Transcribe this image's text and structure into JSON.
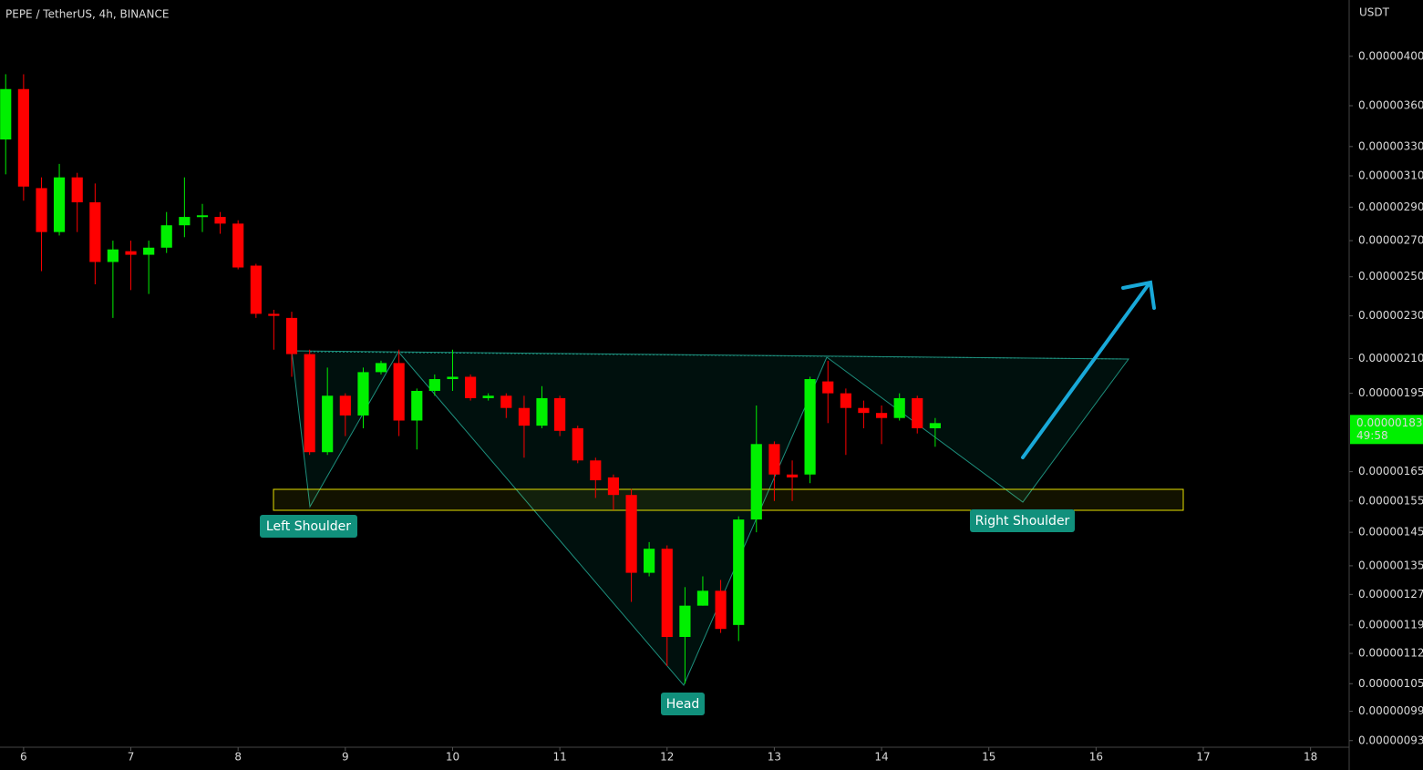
{
  "chart_data": {
    "type": "candlestick",
    "title": "PEPE / TetherUS, 4h, BINANCE",
    "y_axis_label": "USDT",
    "log_scale": true,
    "grid": false,
    "up_color": "#00f000",
    "down_color": "#ff0000",
    "x": [
      5.833,
      6,
      6.167,
      6.333,
      6.5,
      6.667,
      6.833,
      7,
      7.167,
      7.333,
      7.5,
      7.667,
      7.833,
      8,
      8.167,
      8.333,
      8.5,
      8.667,
      8.833,
      9,
      9.167,
      9.333,
      9.5,
      9.667,
      9.833,
      10,
      10.167,
      10.333,
      10.5,
      10.667,
      10.833,
      11,
      11.167,
      11.333,
      11.5,
      11.667,
      11.833,
      12,
      12.167,
      12.333,
      12.5,
      12.667,
      12.833,
      13,
      13.167,
      13.333,
      13.5,
      13.667,
      13.833,
      14,
      14.167,
      14.333,
      14.5
    ],
    "open": [
      3.35e-06,
      3.73e-06,
      3.02e-06,
      2.75e-06,
      3.09e-06,
      2.93e-06,
      2.58e-06,
      2.64e-06,
      2.62e-06,
      2.66e-06,
      2.79e-06,
      2.84e-06,
      2.84e-06,
      2.8e-06,
      2.56e-06,
      2.31e-06,
      2.29e-06,
      2.12e-06,
      1.72e-06,
      1.94e-06,
      1.86e-06,
      2.04e-06,
      2.08e-06,
      1.84e-06,
      1.96e-06,
      2.01e-06,
      2.02e-06,
      1.93e-06,
      1.94e-06,
      1.89e-06,
      1.82e-06,
      1.93e-06,
      1.81e-06,
      1.69e-06,
      1.63e-06,
      1.57e-06,
      1.33e-06,
      1.4e-06,
      1.16e-06,
      1.24e-06,
      1.28e-06,
      1.19e-06,
      1.49e-06,
      1.75e-06,
      1.64e-06,
      1.64e-06,
      2e-06,
      1.95e-06,
      1.89e-06,
      1.87e-06,
      1.85e-06,
      1.93e-06,
      1.81e-06
    ],
    "high": [
      3.85e-06,
      3.85e-06,
      3.09e-06,
      3.18e-06,
      3.12e-06,
      3.05e-06,
      2.7e-06,
      2.7e-06,
      2.7e-06,
      2.87e-06,
      3.09e-06,
      2.92e-06,
      2.87e-06,
      2.82e-06,
      2.57e-06,
      2.33e-06,
      2.32e-06,
      2.14e-06,
      2.06e-06,
      1.95e-06,
      2.06e-06,
      2.09e-06,
      2.14e-06,
      1.97e-06,
      2.03e-06,
      2.14e-06,
      2.03e-06,
      1.95e-06,
      1.95e-06,
      1.94e-06,
      1.98e-06,
      1.94e-06,
      1.82e-06,
      1.7e-06,
      1.64e-06,
      1.59e-06,
      1.42e-06,
      1.41e-06,
      1.29e-06,
      1.32e-06,
      1.31e-06,
      1.5e-06,
      1.9e-06,
      1.76e-06,
      1.69e-06,
      2.02e-06,
      2.09e-06,
      1.97e-06,
      1.92e-06,
      1.9e-06,
      1.95e-06,
      1.94e-06,
      1.85e-06
    ],
    "low": [
      3.11e-06,
      2.94e-06,
      2.53e-06,
      2.73e-06,
      2.75e-06,
      2.46e-06,
      2.29e-06,
      2.43e-06,
      2.41e-06,
      2.63e-06,
      2.72e-06,
      2.75e-06,
      2.74e-06,
      2.54e-06,
      2.29e-06,
      2.14e-06,
      2.02e-06,
      1.71e-06,
      1.71e-06,
      1.78e-06,
      1.81e-06,
      2.03e-06,
      1.78e-06,
      1.73e-06,
      1.94e-06,
      1.96e-06,
      1.92e-06,
      1.92e-06,
      1.85e-06,
      1.7e-06,
      1.81e-06,
      1.78e-06,
      1.68e-06,
      1.56e-06,
      1.52e-06,
      1.25e-06,
      1.32e-06,
      1.09e-06,
      1.05e-06,
      1.24e-06,
      1.17e-06,
      1.15e-06,
      1.45e-06,
      1.55e-06,
      1.55e-06,
      1.61e-06,
      1.83e-06,
      1.71e-06,
      1.81e-06,
      1.75e-06,
      1.84e-06,
      1.79e-06,
      1.74e-06
    ],
    "close": [
      3.73e-06,
      3.03e-06,
      2.75e-06,
      3.09e-06,
      2.93e-06,
      2.58e-06,
      2.65e-06,
      2.62e-06,
      2.66e-06,
      2.79e-06,
      2.84e-06,
      2.85e-06,
      2.8e-06,
      2.55e-06,
      2.31e-06,
      2.3e-06,
      2.12e-06,
      1.72e-06,
      1.94e-06,
      1.86e-06,
      2.04e-06,
      2.08e-06,
      1.84e-06,
      1.96e-06,
      2.01e-06,
      2.02e-06,
      1.93e-06,
      1.94e-06,
      1.89e-06,
      1.82e-06,
      1.93e-06,
      1.8e-06,
      1.69e-06,
      1.62e-06,
      1.57e-06,
      1.33e-06,
      1.4e-06,
      1.16e-06,
      1.24e-06,
      1.28e-06,
      1.18e-06,
      1.49e-06,
      1.75e-06,
      1.64e-06,
      1.63e-06,
      2.01e-06,
      1.95e-06,
      1.89e-06,
      1.87e-06,
      1.85e-06,
      1.93e-06,
      1.81e-06,
      1.83e-06
    ],
    "xlim": [
      5.78,
      18.36
    ],
    "xticks": [
      6,
      7,
      8,
      9,
      10,
      11,
      12,
      13,
      14,
      15,
      16,
      17,
      18
    ],
    "ylim": [
      4.51e-06,
      9.17e-07
    ],
    "yticks": [
      {
        "value": 4e-06,
        "label": "0.00000400"
      },
      {
        "value": 3.6e-06,
        "label": "0.00000360"
      },
      {
        "value": 3.3e-06,
        "label": "0.00000330"
      },
      {
        "value": 3.1e-06,
        "label": "0.00000310"
      },
      {
        "value": 2.9e-06,
        "label": "0.00000290"
      },
      {
        "value": 2.7e-06,
        "label": "0.00000270"
      },
      {
        "value": 2.5e-06,
        "label": "0.00000250"
      },
      {
        "value": 2.3e-06,
        "label": "0.00000230"
      },
      {
        "value": 2.1e-06,
        "label": "0.00000210"
      },
      {
        "value": 1.95e-06,
        "label": "0.00000195"
      },
      {
        "value": 1.65e-06,
        "label": "0.00000165"
      },
      {
        "value": 1.55e-06,
        "label": "0.00000155"
      },
      {
        "value": 1.45e-06,
        "label": "0.00000145"
      },
      {
        "value": 1.35e-06,
        "label": "0.00000135"
      },
      {
        "value": 1.27e-06,
        "label": "0.00000127"
      },
      {
        "value": 1.19e-06,
        "label": "0.00000119"
      },
      {
        "value": 1.12e-06,
        "label": "0.00000112"
      },
      {
        "value": 1.05e-06,
        "label": "0.00000105"
      },
      {
        "value": 9.9e-07,
        "label": "0.00000099"
      },
      {
        "value": 9.3e-07,
        "label": "0.00000093"
      }
    ],
    "price_label": {
      "value": 1.83e-06,
      "label": "0.00000183"
    },
    "countdown": "49:58",
    "annotations": [
      "Left Shoulder",
      "Head",
      "Right Shoulder"
    ]
  }
}
